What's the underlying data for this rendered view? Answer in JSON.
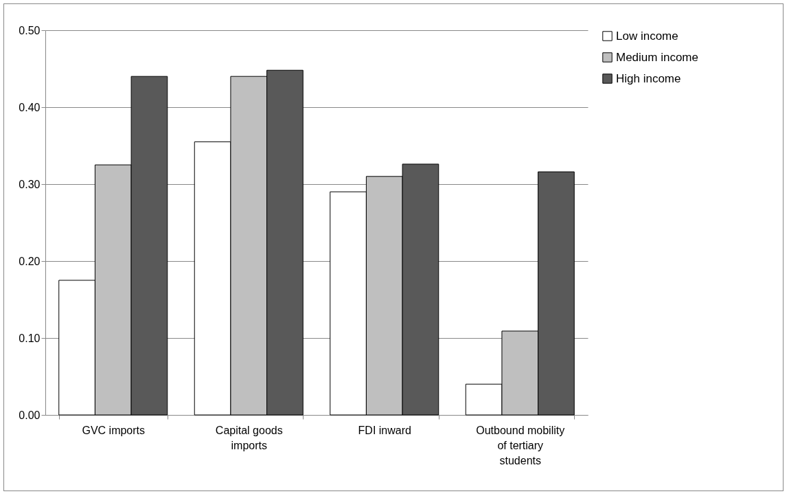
{
  "chart_data": {
    "type": "bar",
    "categories": [
      "GVC imports",
      "Capital goods imports",
      "FDI inward",
      "Outbound mobility of tertiary students"
    ],
    "series": [
      {
        "name": "Low income",
        "color": "#ffffff",
        "values": [
          0.175,
          0.355,
          0.29,
          0.04
        ]
      },
      {
        "name": "Medium income",
        "color": "#bfbfbf",
        "values": [
          0.325,
          0.44,
          0.31,
          0.109
        ]
      },
      {
        "name": "High income",
        "color": "#595959",
        "values": [
          0.44,
          0.448,
          0.326,
          0.316
        ]
      }
    ],
    "ylim": [
      0,
      0.5
    ],
    "yticks": [
      {
        "value": 0,
        "label": "0.00"
      },
      {
        "value": 0.1,
        "label": "0.10"
      },
      {
        "value": 0.2,
        "label": "0.20"
      },
      {
        "value": 0.3,
        "label": "0.30"
      },
      {
        "value": 0.4,
        "label": "0.40"
      },
      {
        "value": 0.5,
        "label": "0.50"
      }
    ],
    "grid": "y",
    "legend": "right"
  }
}
